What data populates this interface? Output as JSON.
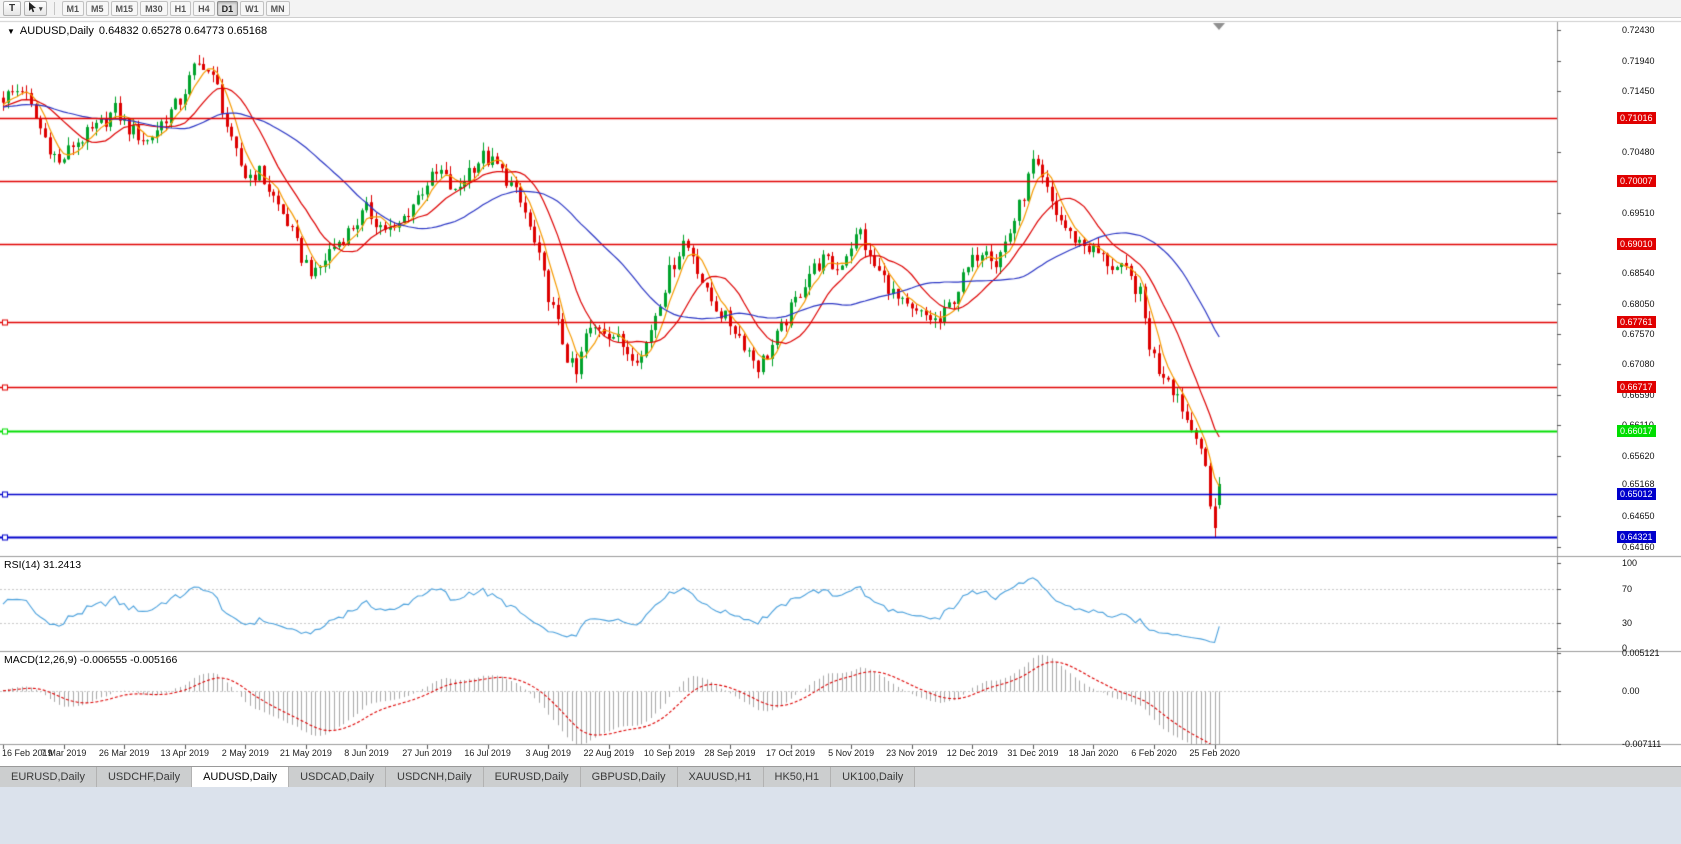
{
  "toolbar": {
    "tool_button": "T",
    "cursor_dropdown": "▾",
    "timeframes": [
      "M1",
      "M5",
      "M15",
      "M30",
      "H1",
      "H4",
      "D1",
      "W1",
      "MN"
    ],
    "active_timeframe": "D1"
  },
  "chart_header": {
    "symbol_period": "AUDUSD,Daily",
    "ohlc": "0.64832 0.65278 0.64773 0.65168"
  },
  "chart_data": {
    "type": "candlestick",
    "symbol": "AUDUSD",
    "timeframe": "Daily",
    "ohlc_display": {
      "open": "0.64832",
      "high": "0.65278",
      "low": "0.64773",
      "close": "0.65168"
    },
    "x_dates": [
      "16 Feb 2019",
      "7 Mar 2019",
      "26 Mar 2019",
      "13 Apr 2019",
      "2 May 2019",
      "21 May 2019",
      "8 Jun 2019",
      "27 Jun 2019",
      "16 Jul 2019",
      "3 Aug 2019",
      "22 Aug 2019",
      "10 Sep 2019",
      "28 Sep 2019",
      "17 Oct 2019",
      "5 Nov 2019",
      "23 Nov 2019",
      "12 Dec 2019",
      "31 Dec 2019",
      "18 Jan 2020",
      "6 Feb 2020",
      "25 Feb 2020"
    ],
    "candles_per_tick": 13,
    "num_candles": 262,
    "y_axis": {
      "top_label_price": 0.7243,
      "bottom_label_price": 0.6416
    },
    "price_axis_labels": [
      "0.72430",
      "0.71940",
      "0.71450",
      "0.70480",
      "0.69510",
      "0.68540",
      "0.68050",
      "0.67570",
      "0.67080",
      "0.66590",
      "0.66110",
      "0.65620",
      "0.64650",
      "0.64160"
    ],
    "current_price_label": "0.65168",
    "horizontal_lines": [
      {
        "price": 0.71016,
        "label": "0.71016",
        "color": "#e00000",
        "width": 1.3,
        "handle": false
      },
      {
        "price": 0.70007,
        "label": "0.70007",
        "color": "#e00000",
        "width": 1.3,
        "handle": false
      },
      {
        "price": 0.6901,
        "label": "0.69010",
        "color": "#e00000",
        "width": 1.3,
        "handle": false
      },
      {
        "price": 0.67761,
        "label": "0.67761",
        "color": "#e00000",
        "width": 1.3,
        "handle": true
      },
      {
        "price": 0.66717,
        "label": "0.66717",
        "color": "#e00000",
        "width": 1.3,
        "handle": true
      },
      {
        "price": 0.66017,
        "label": "0.66017",
        "color": "#00dd00",
        "width": 2,
        "handle": true
      },
      {
        "price": 0.65012,
        "label": "0.65012",
        "color": "#0000cc",
        "width": 1.3,
        "handle": true
      },
      {
        "price": 0.64321,
        "label": "0.64321",
        "color": "#0000cc",
        "width": 2,
        "handle": true
      }
    ],
    "moving_averages": [
      {
        "period": 5,
        "color": "#f59a00"
      },
      {
        "period": 13,
        "color": "#dd0000"
      },
      {
        "period": 34,
        "color": "#2a35c4"
      }
    ],
    "candle_colors": {
      "up": "#00a32b",
      "down": "#dd0000"
    },
    "price_anchors": [
      [
        0,
        0.7135
      ],
      [
        4,
        0.715
      ],
      [
        8,
        0.7085
      ],
      [
        12,
        0.7028
      ],
      [
        15,
        0.706
      ],
      [
        20,
        0.7085
      ],
      [
        24,
        0.7115
      ],
      [
        27,
        0.7085
      ],
      [
        31,
        0.7065
      ],
      [
        34,
        0.7095
      ],
      [
        38,
        0.713
      ],
      [
        41,
        0.718
      ],
      [
        43,
        0.719
      ],
      [
        46,
        0.715
      ],
      [
        49,
        0.706
      ],
      [
        52,
        0.701
      ],
      [
        55,
        0.7015
      ],
      [
        58,
        0.6975
      ],
      [
        61,
        0.6935
      ],
      [
        64,
        0.688
      ],
      [
        67,
        0.685
      ],
      [
        70,
        0.689
      ],
      [
        74,
        0.692
      ],
      [
        78,
        0.6955
      ],
      [
        81,
        0.693
      ],
      [
        84,
        0.692
      ],
      [
        88,
        0.6965
      ],
      [
        91,
        0.7
      ],
      [
        94,
        0.7015
      ],
      [
        97,
        0.698
      ],
      [
        100,
        0.702
      ],
      [
        103,
        0.704
      ],
      [
        106,
        0.7025
      ],
      [
        109,
        0.6995
      ],
      [
        112,
        0.695
      ],
      [
        115,
        0.6875
      ],
      [
        117,
        0.682
      ],
      [
        119,
        0.677
      ],
      [
        121,
        0.672
      ],
      [
        123,
        0.669
      ],
      [
        125,
        0.6755
      ],
      [
        128,
        0.677
      ],
      [
        131,
        0.6755
      ],
      [
        134,
        0.673
      ],
      [
        137,
        0.672
      ],
      [
        140,
        0.679
      ],
      [
        143,
        0.6855
      ],
      [
        146,
        0.6905
      ],
      [
        148,
        0.6885
      ],
      [
        151,
        0.682
      ],
      [
        154,
        0.679
      ],
      [
        157,
        0.6765
      ],
      [
        160,
        0.673
      ],
      [
        162,
        0.6705
      ],
      [
        164,
        0.6725
      ],
      [
        167,
        0.6765
      ],
      [
        170,
        0.681
      ],
      [
        173,
        0.6855
      ],
      [
        176,
        0.6875
      ],
      [
        179,
        0.686
      ],
      [
        182,
        0.69
      ],
      [
        184,
        0.692
      ],
      [
        186,
        0.6875
      ],
      [
        189,
        0.6845
      ],
      [
        192,
        0.681
      ],
      [
        195,
        0.679
      ],
      [
        198,
        0.6785
      ],
      [
        201,
        0.6775
      ],
      [
        204,
        0.6815
      ],
      [
        207,
        0.686
      ],
      [
        209,
        0.6885
      ],
      [
        211,
        0.69
      ],
      [
        213,
        0.687
      ],
      [
        216,
        0.692
      ],
      [
        219,
        0.698
      ],
      [
        221,
        0.703
      ],
      [
        223,
        0.7
      ],
      [
        226,
        0.695
      ],
      [
        229,
        0.6915
      ],
      [
        232,
        0.69
      ],
      [
        235,
        0.6885
      ],
      [
        238,
        0.6865
      ],
      [
        241,
        0.6855
      ],
      [
        244,
        0.682
      ],
      [
        246,
        0.674
      ],
      [
        248,
        0.67
      ],
      [
        250,
        0.669
      ],
      [
        251,
        0.667
      ],
      [
        252,
        0.666
      ],
      [
        253,
        0.664
      ],
      [
        254,
        0.662
      ],
      [
        255,
        0.6605
      ],
      [
        256,
        0.6595
      ],
      [
        257,
        0.6575
      ],
      [
        258,
        0.654
      ],
      [
        259,
        0.648
      ],
      [
        260,
        0.645
      ],
      [
        261,
        0.6517
      ]
    ],
    "last_candle": {
      "o": 0.64832,
      "h": 0.65278,
      "l": 0.64773,
      "c": 0.65168
    },
    "forced_low": {
      "index": 260,
      "low": 0.6432
    },
    "rsi": {
      "label_text": "RSI(14) 31.2413",
      "period": 14,
      "value": "31.2413",
      "color": "#4aa0dc",
      "axis_labels": [
        "100",
        "70",
        "30",
        "0"
      ],
      "dashed_levels": [
        70,
        30
      ]
    },
    "macd": {
      "label_text": "MACD(12,26,9) -0.006555 -0.005166",
      "fast": 12,
      "slow": 26,
      "signal": 9,
      "values": "-0.006555 -0.005166",
      "hist_color": "#a8a8a8",
      "signal_color": "#dd0000",
      "axis_labels": [
        "0.005121",
        "0.00",
        "-0.007111"
      ],
      "axis_max": 0.005121,
      "axis_min": -0.007111
    }
  },
  "bottom_tabs": {
    "tabs": [
      "EURUSD,Daily",
      "USDCHF,Daily",
      "AUDUSD,Daily",
      "USDCAD,Daily",
      "USDCNH,Daily",
      "EURUSD,Daily",
      "GBPUSD,Daily",
      "XAUUSD,H1",
      "HK50,H1",
      "UK100,Daily"
    ],
    "active_index": 2
  }
}
